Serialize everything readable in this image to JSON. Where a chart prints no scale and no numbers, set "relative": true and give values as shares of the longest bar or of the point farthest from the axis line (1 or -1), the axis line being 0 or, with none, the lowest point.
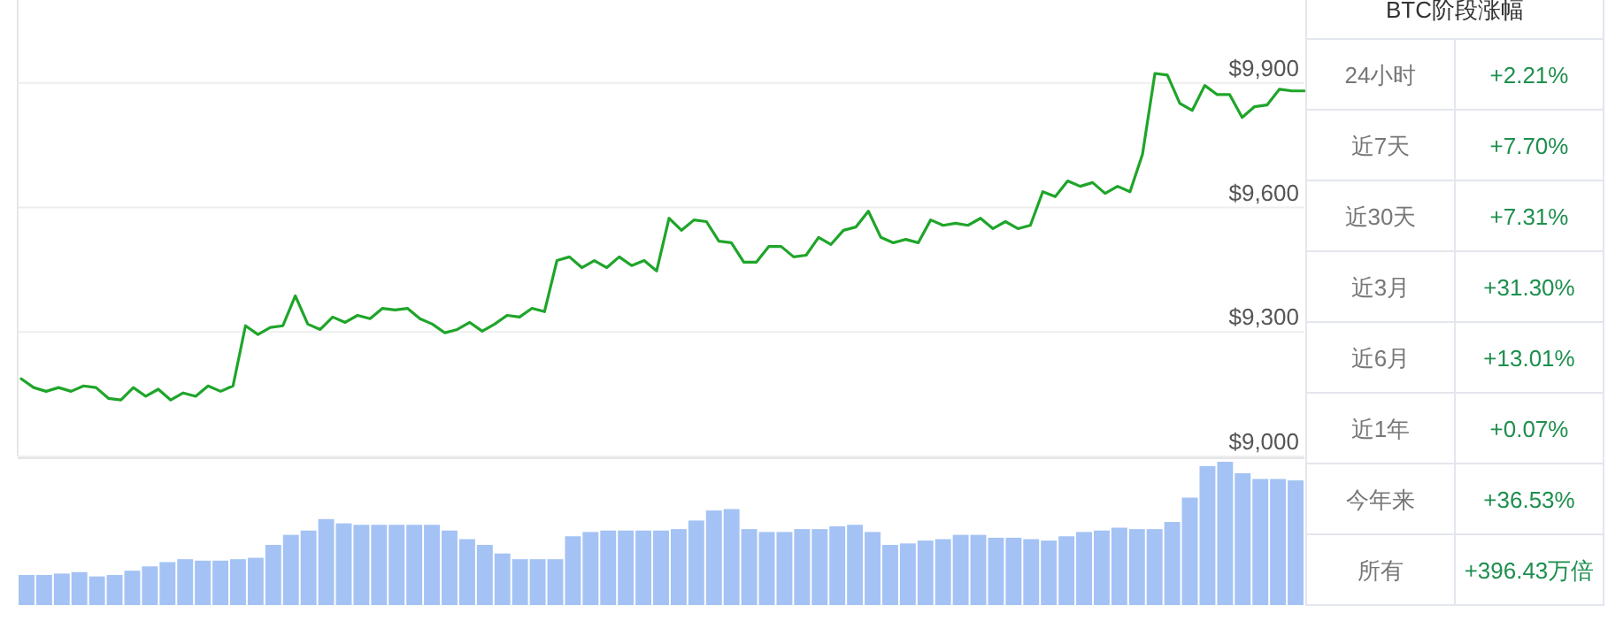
{
  "chart_data": [
    {
      "type": "line",
      "color": "#1fa52a",
      "grid": "y",
      "ylim": [
        9000,
        10100
      ],
      "yticks": [
        {
          "value": 9000,
          "label": "$9,000"
        },
        {
          "value": 9300,
          "label": "$9,300"
        },
        {
          "value": 9600,
          "label": "$9,600"
        },
        {
          "value": 9900,
          "label": "$9,900"
        }
      ],
      "categories": [
        null,
        null,
        null,
        null,
        null,
        null,
        null,
        null,
        null,
        null,
        null,
        null,
        null,
        null,
        null,
        null,
        null,
        null,
        null,
        null,
        null,
        null,
        null,
        null,
        null,
        null,
        null,
        null,
        null,
        null,
        null,
        null,
        null,
        null,
        null,
        null,
        null,
        null,
        null,
        null,
        null,
        null,
        null,
        null,
        null,
        null,
        null,
        null,
        null,
        null,
        null,
        null,
        null,
        null,
        null,
        null,
        null,
        null,
        null,
        null,
        null,
        null,
        null,
        null,
        null,
        null,
        null,
        null,
        null,
        null,
        null,
        null,
        null,
        null,
        null,
        null,
        null,
        null,
        null,
        null,
        null,
        null,
        null,
        null,
        null,
        null,
        null,
        null,
        null,
        null,
        null,
        null,
        null,
        null,
        null,
        null,
        null,
        null,
        null,
        null,
        null,
        null,
        null,
        null
      ],
      "values": [
        9187,
        9166,
        9157,
        9166,
        9157,
        9170,
        9166,
        9140,
        9136,
        9166,
        9145,
        9162,
        9136,
        9153,
        9145,
        9170,
        9157,
        9170,
        9315,
        9294,
        9311,
        9315,
        9387,
        9319,
        9306,
        9336,
        9323,
        9340,
        9332,
        9357,
        9353,
        9357,
        9332,
        9319,
        9298,
        9306,
        9323,
        9302,
        9319,
        9340,
        9336,
        9357,
        9349,
        9472,
        9481,
        9455,
        9472,
        9455,
        9481,
        9460,
        9472,
        9447,
        9574,
        9545,
        9570,
        9566,
        9519,
        9515,
        9468,
        9468,
        9506,
        9506,
        9481,
        9485,
        9528,
        9511,
        9545,
        9553,
        9591,
        9528,
        9515,
        9523,
        9515,
        9570,
        9557,
        9562,
        9557,
        9574,
        9549,
        9566,
        9549,
        9557,
        9638,
        9626,
        9664,
        9651,
        9660,
        9634,
        9651,
        9638,
        9728,
        9923,
        9919,
        9851,
        9834,
        9894,
        9872,
        9872,
        9817,
        9843,
        9847,
        9885,
        9881,
        9881
      ]
    },
    {
      "type": "bar",
      "relative": true,
      "color": "#a4c2f4",
      "categories": [
        null,
        null,
        null,
        null,
        null,
        null,
        null,
        null,
        null,
        null,
        null,
        null,
        null,
        null,
        null,
        null,
        null,
        null,
        null,
        null,
        null,
        null,
        null,
        null,
        null,
        null,
        null,
        null,
        null,
        null,
        null,
        null,
        null,
        null,
        null,
        null,
        null,
        null,
        null,
        null,
        null,
        null,
        null,
        null,
        null,
        null,
        null,
        null,
        null,
        null,
        null,
        null,
        null,
        null,
        null,
        null,
        null,
        null,
        null,
        null,
        null,
        null,
        null,
        null,
        null,
        null,
        null,
        null,
        null,
        null,
        null,
        null,
        null
      ],
      "values": [
        0.21,
        0.21,
        0.22,
        0.23,
        0.2,
        0.21,
        0.24,
        0.27,
        0.3,
        0.32,
        0.31,
        0.31,
        0.32,
        0.33,
        0.42,
        0.49,
        0.52,
        0.6,
        0.57,
        0.56,
        0.56,
        0.56,
        0.56,
        0.56,
        0.52,
        0.46,
        0.42,
        0.36,
        0.32,
        0.32,
        0.32,
        0.48,
        0.51,
        0.52,
        0.52,
        0.52,
        0.52,
        0.53,
        0.59,
        0.66,
        0.67,
        0.53,
        0.51,
        0.51,
        0.53,
        0.53,
        0.55,
        0.56,
        0.51,
        0.42,
        0.43,
        0.45,
        0.46,
        0.49,
        0.49,
        0.47,
        0.47,
        0.46,
        0.45,
        0.48,
        0.51,
        0.52,
        0.54,
        0.53,
        0.53,
        0.58,
        0.75,
        0.97,
        1.0,
        0.92,
        0.88,
        0.88,
        0.87
      ]
    },
    {
      "type": "other",
      "title": "BTC阶段涨幅",
      "categories": [
        "24小时",
        "近7天",
        "近30天",
        "近3月",
        "近6月",
        "近1年",
        "今年来",
        "所有"
      ],
      "value_labels": [
        "+2.21%",
        "+7.70%",
        "+7.31%",
        "+31.30%",
        "+13.01%",
        "+0.07%",
        "+36.53%",
        "+396.43万倍"
      ]
    }
  ]
}
